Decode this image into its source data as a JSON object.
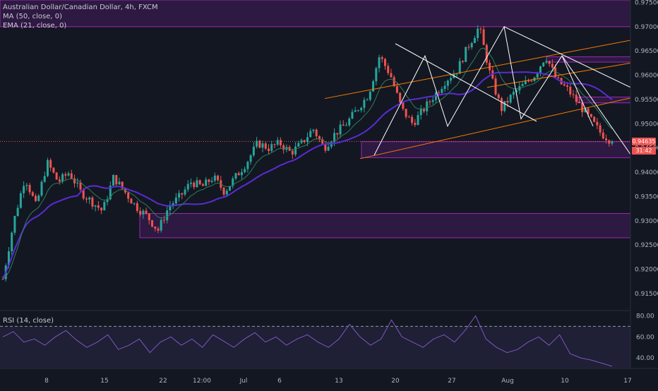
{
  "header": {
    "symbol_line": "Australian Dollar/Canadian Dollar, 4h, FXCM",
    "ma_line": "MA (50, close, 0)",
    "ema_line": "EMA (21, close, 0)"
  },
  "rsi_panel": {
    "label": "RSI (14, close)"
  },
  "price_labels": {
    "last_price": "0.94635",
    "countdown": "31:42"
  },
  "colors": {
    "background": "#131722",
    "up_candle": "#26a69a",
    "down_candle": "#ef5350",
    "zone_fill": "rgba(123,31,162,0.25)",
    "zone_border": "#9c27b0",
    "ma_line": "#5b2bd6",
    "ema_line": "#2e7d5b",
    "channel_lines": "#f57c00",
    "pattern_lines": "#ffffff",
    "rsi_line": "#7e57c2"
  },
  "chart_data": [
    {
      "type": "candlestick",
      "title": "Australian Dollar/Canadian Dollar, 4h, FXCM",
      "y_axis_ticks": [
        "0.97500",
        "0.97000",
        "0.96500",
        "0.96000",
        "0.95500",
        "0.95000",
        "0.94500",
        "0.94000",
        "0.93500",
        "0.93000",
        "0.92500",
        "0.92000",
        "0.91500"
      ],
      "ylim": [
        0.9115,
        0.9755
      ],
      "x_axis_ticks": [
        "8",
        "15",
        "22",
        "12:00",
        "Jul",
        "6",
        "13",
        "20",
        "27",
        "Aug",
        "10",
        "17"
      ],
      "grid": false,
      "close_path": [
        {
          "x": 0,
          "close": 0.918
        },
        {
          "x": 2,
          "close": 0.93
        },
        {
          "x": 4,
          "close": 0.939
        },
        {
          "x": 6,
          "close": 0.933
        },
        {
          "x": 8,
          "close": 0.942
        },
        {
          "x": 10,
          "close": 0.938
        },
        {
          "x": 12,
          "close": 0.94
        },
        {
          "x": 14,
          "close": 0.936
        },
        {
          "x": 16,
          "close": 0.934
        },
        {
          "x": 18,
          "close": 0.932
        },
        {
          "x": 20,
          "close": 0.939
        },
        {
          "x": 22,
          "close": 0.936
        },
        {
          "x": 24,
          "close": 0.933
        },
        {
          "x": 26,
          "close": 0.931
        },
        {
          "x": 28,
          "close": 0.928
        },
        {
          "x": 30,
          "close": 0.933
        },
        {
          "x": 32,
          "close": 0.935
        },
        {
          "x": 34,
          "close": 0.938
        },
        {
          "x": 36,
          "close": 0.937
        },
        {
          "x": 38,
          "close": 0.939
        },
        {
          "x": 40,
          "close": 0.936
        },
        {
          "x": 42,
          "close": 0.939
        },
        {
          "x": 44,
          "close": 0.942
        },
        {
          "x": 46,
          "close": 0.946
        },
        {
          "x": 48,
          "close": 0.945
        },
        {
          "x": 50,
          "close": 0.946
        },
        {
          "x": 52,
          "close": 0.944
        },
        {
          "x": 54,
          "close": 0.946
        },
        {
          "x": 56,
          "close": 0.949
        },
        {
          "x": 58,
          "close": 0.945
        },
        {
          "x": 60,
          "close": 0.948
        },
        {
          "x": 62,
          "close": 0.95
        },
        {
          "x": 64,
          "close": 0.953
        },
        {
          "x": 66,
          "close": 0.956
        },
        {
          "x": 68,
          "close": 0.964
        },
        {
          "x": 70,
          "close": 0.96
        },
        {
          "x": 72,
          "close": 0.953
        },
        {
          "x": 74,
          "close": 0.95
        },
        {
          "x": 76,
          "close": 0.953
        },
        {
          "x": 78,
          "close": 0.956
        },
        {
          "x": 80,
          "close": 0.959
        },
        {
          "x": 82,
          "close": 0.961
        },
        {
          "x": 84,
          "close": 0.966
        },
        {
          "x": 86,
          "close": 0.97
        },
        {
          "x": 88,
          "close": 0.96
        },
        {
          "x": 90,
          "close": 0.953
        },
        {
          "x": 92,
          "close": 0.956
        },
        {
          "x": 94,
          "close": 0.958
        },
        {
          "x": 96,
          "close": 0.96
        },
        {
          "x": 98,
          "close": 0.964
        },
        {
          "x": 100,
          "close": 0.959
        },
        {
          "x": 102,
          "close": 0.957
        },
        {
          "x": 104,
          "close": 0.954
        },
        {
          "x": 106,
          "close": 0.951
        },
        {
          "x": 108,
          "close": 0.948
        },
        {
          "x": 110,
          "close": 0.94635
        }
      ],
      "zones": [
        {
          "low": 0.97,
          "high": 0.9755
        },
        {
          "low": 0.9627,
          "high": 0.9638
        },
        {
          "low": 0.9543,
          "high": 0.9555
        },
        {
          "low": 0.943,
          "high": 0.9463
        },
        {
          "low": 0.9265,
          "high": 0.9315
        }
      ],
      "last_price": 0.94635
    },
    {
      "type": "line",
      "title": "RSI (14, close)",
      "y_axis_ticks": [
        "80.00",
        "60.00",
        "40.00"
      ],
      "ylim": [
        30,
        85
      ],
      "reference_levels": [
        70,
        30
      ],
      "values": [
        60,
        65,
        55,
        58,
        52,
        60,
        66,
        57,
        50,
        55,
        62,
        48,
        52,
        58,
        45,
        55,
        60,
        52,
        58,
        50,
        62,
        56,
        50,
        58,
        64,
        55,
        60,
        52,
        58,
        62,
        55,
        50,
        58,
        72,
        60,
        52,
        58,
        76,
        60,
        55,
        50,
        58,
        62,
        55,
        66,
        80,
        58,
        50,
        45,
        48,
        55,
        60,
        52,
        62,
        44,
        40,
        38,
        35,
        32
      ]
    }
  ]
}
